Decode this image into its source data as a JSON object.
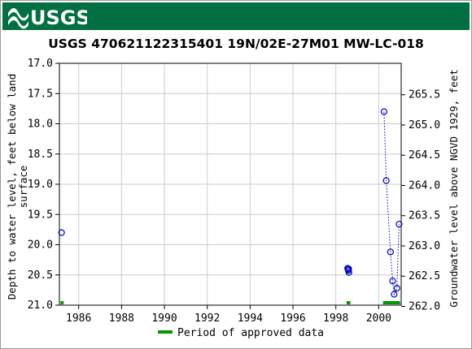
{
  "banner": {
    "logo_text": "USGS",
    "color": "#006f41"
  },
  "chart_data": {
    "type": "scatter",
    "title": "USGS 470621122315401 19N/02E-27M01 MW-LC-018",
    "ylabel_left": [
      "Depth to water level, feet below land",
      "surface"
    ],
    "ylabel_right": "Groundwater level above NGVD 1929, feet",
    "xlim": [
      1985.1,
      2001.05
    ],
    "ylim_left": [
      17.0,
      21.0
    ],
    "y_inverted": true,
    "ylim_right_offset": 283.02,
    "x_ticks": [
      1986,
      1988,
      1990,
      1992,
      1994,
      1996,
      1998,
      2000
    ],
    "y_left_ticks": [
      "17.0",
      "17.5",
      "18.0",
      "18.5",
      "19.0",
      "19.5",
      "20.0",
      "20.5",
      "21.0"
    ],
    "y_right_ticks": [
      "265.5",
      "265.0",
      "264.5",
      "264.0",
      "263.5",
      "263.0",
      "262.5",
      "262.0"
    ],
    "grid": true,
    "series": [
      {
        "marker": "open-circle",
        "color": "#0000cc",
        "connect_dotted": false,
        "points": [
          [
            1985.2,
            19.8
          ]
        ]
      },
      {
        "marker": "open-circle",
        "color": "#0000cc",
        "connect_dotted": false,
        "points": [
          [
            1998.55,
            20.39
          ],
          [
            1998.57,
            20.41
          ],
          [
            1998.59,
            20.43
          ],
          [
            1998.61,
            20.46
          ],
          [
            1998.6,
            20.4
          ]
        ]
      },
      {
        "marker": "open-circle",
        "color": "#0000cc",
        "connect_dotted": true,
        "points": [
          [
            2000.25,
            17.8
          ],
          [
            2000.35,
            18.94
          ],
          [
            2000.55,
            20.12
          ],
          [
            2000.65,
            20.6
          ],
          [
            2000.72,
            20.82
          ],
          [
            2000.85,
            20.72
          ],
          [
            2000.95,
            19.66
          ]
        ]
      }
    ],
    "approved_periods": [
      [
        1985.15,
        1985.3
      ],
      [
        1998.5,
        1998.68
      ],
      [
        2000.2,
        2001.0
      ]
    ],
    "approved_color": "#009900",
    "legend": {
      "label": "Period of approved data",
      "placement": "bottom-center"
    }
  }
}
